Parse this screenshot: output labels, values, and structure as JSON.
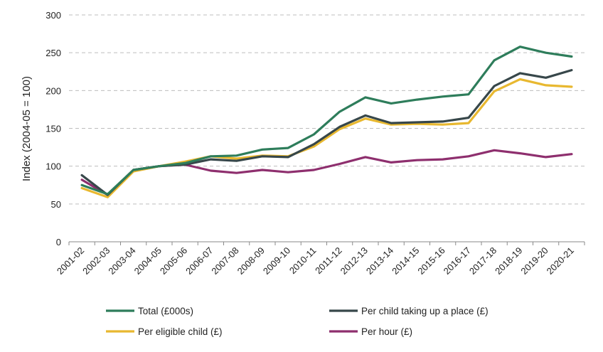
{
  "chart_data": {
    "type": "line",
    "title": "",
    "xlabel": "",
    "ylabel": "Index (2004-05 = 100)",
    "ylim": [
      0,
      300
    ],
    "yticks": [
      0,
      50,
      100,
      150,
      200,
      250,
      300
    ],
    "grid": "horizontal dashed",
    "legend_position": "bottom",
    "categories": [
      "2001-02",
      "2002-03",
      "2003-04",
      "2004-05",
      "2005-06",
      "2006-07",
      "2007-08",
      "2008-09",
      "2009-10",
      "2010-11",
      "2011-12",
      "2012-13",
      "2013-14",
      "2014-15",
      "2015-16",
      "2016-17",
      "2017-18",
      "2018-19",
      "2019-20",
      "2020-21"
    ],
    "series": [
      {
        "name": "Total (£000s)",
        "color": "#2e7d5b",
        "values": [
          75,
          63,
          95,
          100,
          104,
          113,
          114,
          122,
          124,
          142,
          172,
          191,
          183,
          188,
          192,
          195,
          240,
          258,
          250,
          245
        ]
      },
      {
        "name": "Per child taking up a place (£)",
        "color": "#37474a",
        "values": [
          88,
          62,
          95,
          100,
          102,
          109,
          107,
          113,
          112,
          129,
          152,
          167,
          157,
          158,
          159,
          164,
          206,
          223,
          217,
          227
        ]
      },
      {
        "name": "Per eligible child (£)",
        "color": "#e8b830",
        "values": [
          71,
          59,
          93,
          100,
          106,
          113,
          110,
          114,
          113,
          126,
          149,
          163,
          155,
          156,
          155,
          157,
          199,
          215,
          207,
          205
        ]
      },
      {
        "name": "Per hour (£)",
        "color": "#8e2f6e",
        "values": [
          82,
          62,
          95,
          100,
          102,
          94,
          91,
          95,
          92,
          95,
          103,
          112,
          105,
          108,
          109,
          113,
          121,
          117,
          112,
          116
        ]
      }
    ]
  }
}
